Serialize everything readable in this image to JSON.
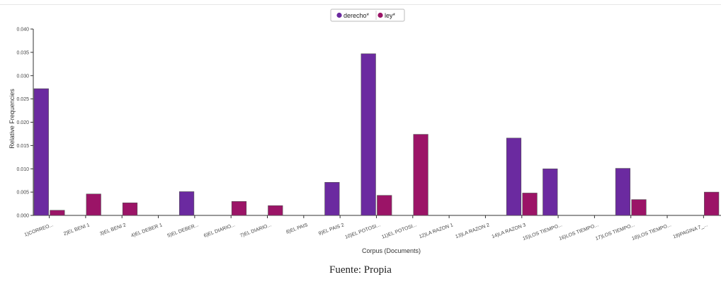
{
  "chart_data": {
    "type": "bar",
    "categories": [
      "1)CORREO...",
      "2)EL BENI 1",
      "3)EL BENI 2",
      "4)EL DEBER 1",
      "5)EL DEBER...",
      "6)EL DIARIO...",
      "7)EL DIARIO...",
      "8)EL PAIS",
      "9)EL PAIS 2",
      "10)EL POTOSI...",
      "11)EL POTOSI...",
      "12)LA RAZON 1",
      "13)LA RAZON 2",
      "14)LA RAZON 3",
      "15)LOS TIEMPO...",
      "16)LOS TIEMPO...",
      "17)LOS TIEMPO...",
      "18)LOS TIEMPO...",
      "19)PAGINA 7_..."
    ],
    "series": [
      {
        "name": "derecho*",
        "color": "#6b2aa0",
        "values": [
          0.0272,
          0,
          0,
          0,
          0.0051,
          0,
          0,
          0,
          0.0071,
          0.0347,
          0,
          0,
          0,
          0.0166,
          0.01,
          0,
          0.0101,
          0,
          0
        ]
      },
      {
        "name": "ley*",
        "color": "#9b1467",
        "values": [
          0.0011,
          0.0046,
          0.0027,
          0,
          0,
          0.003,
          0.0021,
          0,
          0,
          0.0043,
          0.0174,
          0,
          0,
          0.0048,
          0,
          0,
          0.0034,
          0,
          0.005
        ]
      }
    ],
    "xlabel": "Corpus (Documents)",
    "ylabel": "Relative Frequencies",
    "ylim": [
      0,
      0.04
    ],
    "yticks": [
      "0.000",
      "0.005",
      "0.010",
      "0.015",
      "0.020",
      "0.025",
      "0.030",
      "0.035",
      "0.040"
    ],
    "grid": false,
    "legend": "top-center"
  },
  "caption": "Fuente: Propia"
}
